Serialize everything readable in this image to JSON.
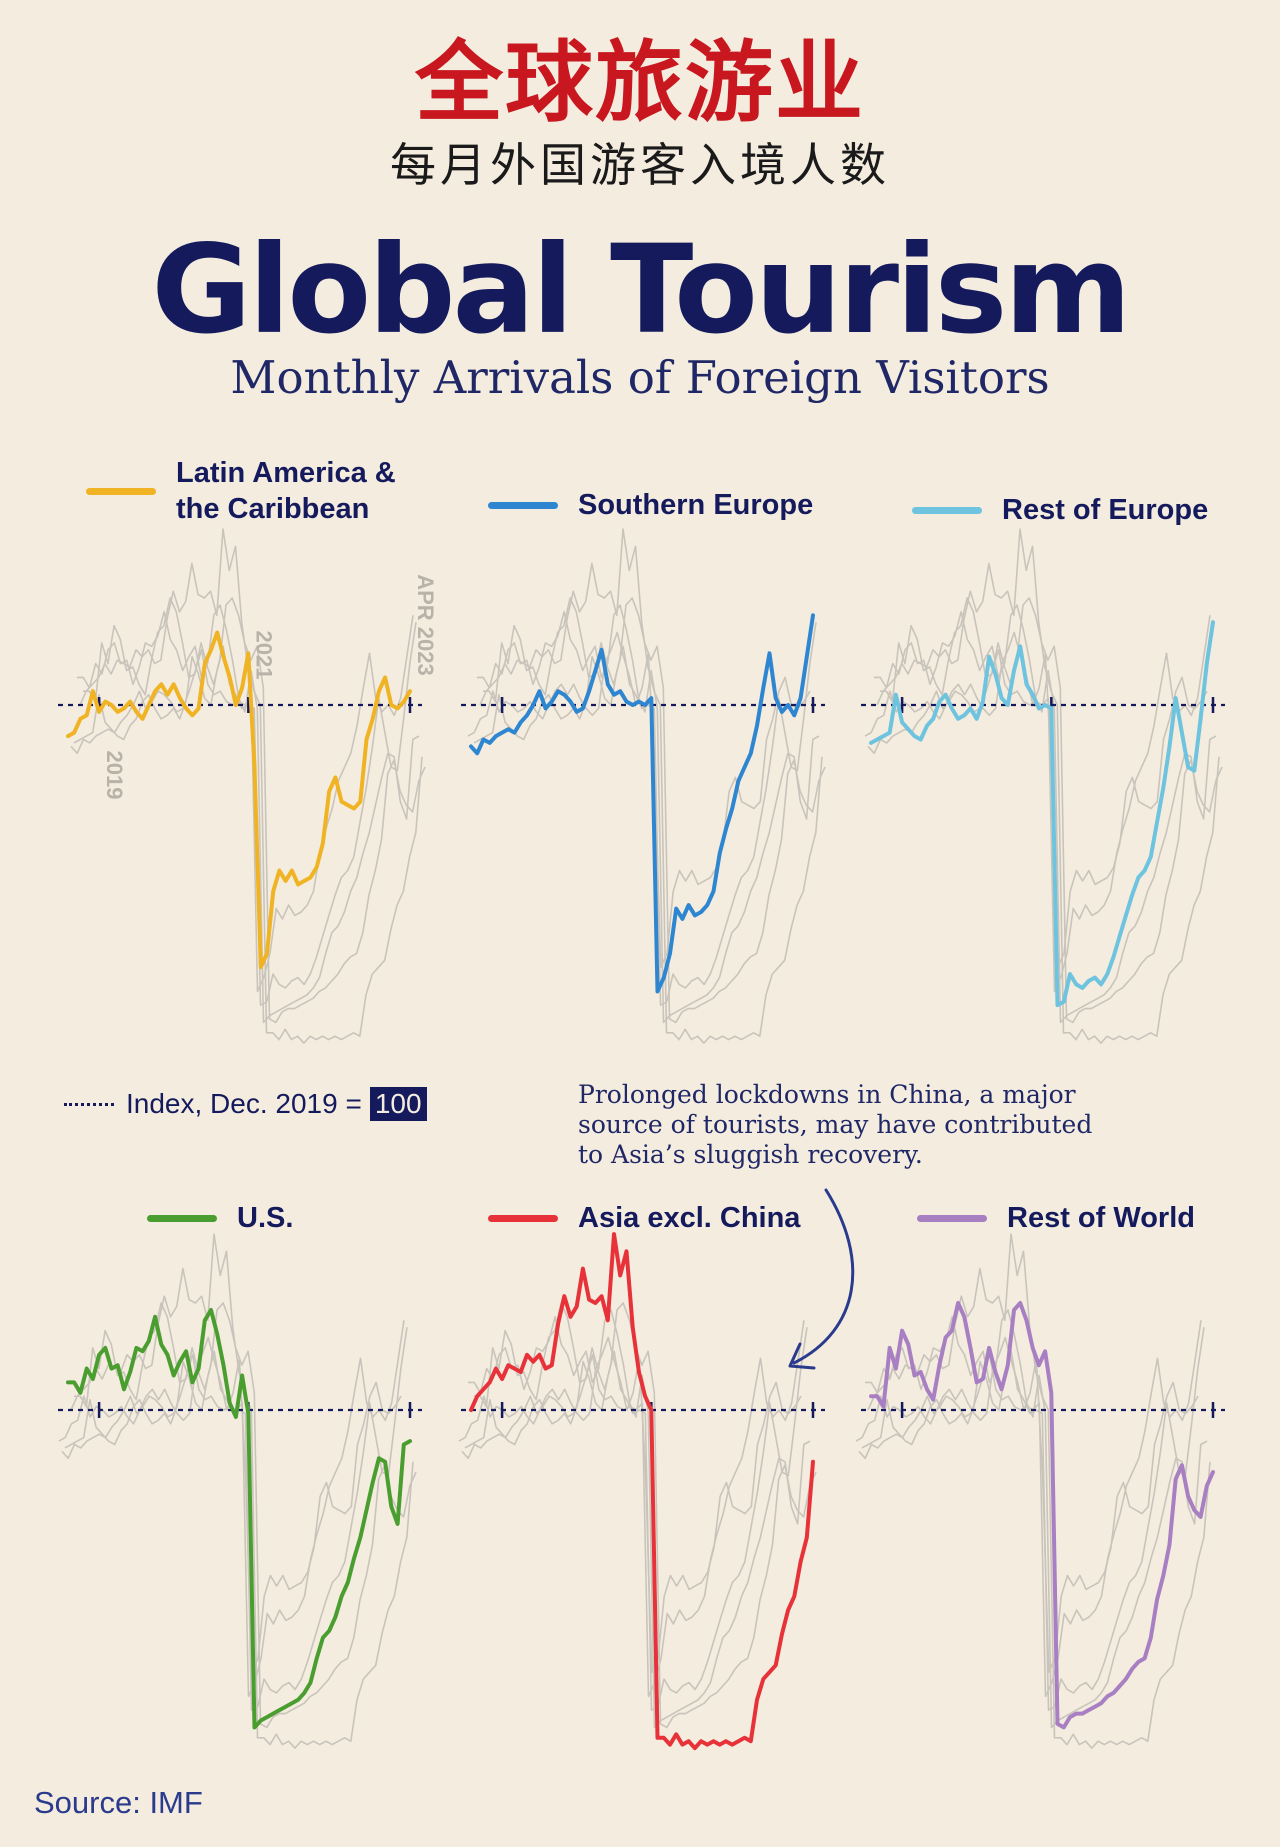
{
  "header": {
    "title_zh": "全球旅游业",
    "subtitle_zh": "每月外国游客入境人数",
    "title_en": "Global Tourism",
    "subtitle_en": "Monthly Arrivals of Foreign Visitors"
  },
  "index_note": {
    "label": "Index, Dec. 2019 =",
    "value": "100"
  },
  "annotation": "Prolonged lockdowns in China, a major source of tourists, may have contributed to Asia’s sluggish recovery.",
  "source": "Source: IMF",
  "colors": {
    "latam": "#f0b323",
    "seurope": "#2e86d1",
    "reurope": "#6ec3df",
    "us": "#4a9e2f",
    "asia": "#e8323a",
    "row": "#a77fc2",
    "ink": "#141a5c",
    "ghost": "#c9c4bb"
  },
  "chart_data": {
    "type": "line",
    "index_base": 100,
    "x_start": "2018-08",
    "x_end": "2023-04",
    "tick_labels": [
      "2019",
      "2021",
      "APR 2023"
    ],
    "panels": [
      {
        "id": "latam",
        "label": "Latin America &\nthe Caribbean",
        "color_key": "latam",
        "values": [
          91,
          92,
          96,
          97,
          104,
          98,
          101,
          100,
          98,
          99,
          101,
          98,
          96,
          100,
          104,
          106,
          103,
          106,
          102,
          99,
          97,
          99,
          112,
          116,
          121,
          114,
          108,
          100,
          105,
          115,
          82,
          24,
          28,
          46,
          52,
          49,
          52,
          48,
          49,
          50,
          53,
          60,
          75,
          79,
          72,
          71,
          70,
          72,
          90,
          96,
          104,
          108,
          100,
          99,
          101,
          104
        ]
      },
      {
        "id": "seurope",
        "label": "Southern Europe",
        "color_key": "seurope",
        "values": [
          88,
          86,
          90,
          89,
          91,
          92,
          93,
          92,
          95,
          97,
          100,
          104,
          99,
          101,
          104,
          103,
          101,
          98,
          99,
          104,
          110,
          116,
          106,
          103,
          104,
          101,
          100,
          101,
          100,
          102,
          17,
          21,
          28,
          41,
          38,
          42,
          39,
          40,
          42,
          46,
          57,
          64,
          70,
          78,
          82,
          86,
          94,
          105,
          115,
          102,
          98,
          100,
          97,
          102,
          114,
          126
        ]
      },
      {
        "id": "reurope",
        "label": "Rest of Europe",
        "color_key": "reurope",
        "values": [
          89,
          90,
          91,
          92,
          103,
          95,
          93,
          91,
          90,
          94,
          96,
          101,
          103,
          99,
          96,
          97,
          99,
          96,
          101,
          114,
          109,
          102,
          100,
          110,
          117,
          106,
          103,
          99,
          100,
          99,
          13,
          14,
          22,
          19,
          18,
          20,
          21,
          19,
          22,
          27,
          33,
          39,
          45,
          50,
          52,
          56,
          66,
          76,
          88,
          102,
          92,
          82,
          81,
          96,
          112,
          124
        ]
      },
      {
        "id": "us",
        "label": "U.S.",
        "color_key": "us",
        "values": [
          108,
          108,
          105,
          112,
          109,
          116,
          118,
          112,
          113,
          106,
          111,
          118,
          117,
          120,
          127,
          119,
          116,
          110,
          114,
          117,
          108,
          112,
          126,
          129,
          122,
          113,
          102,
          98,
          110,
          99,
          8,
          10,
          11,
          12,
          13,
          14,
          15,
          16,
          18,
          21,
          28,
          34,
          36,
          40,
          46,
          50,
          57,
          63,
          71,
          79,
          86,
          85,
          72,
          67,
          90,
          91
        ]
      },
      {
        "id": "asia",
        "label": "Asia excl. China",
        "color_key": "asia",
        "values": [
          100,
          104,
          106,
          108,
          112,
          109,
          113,
          112,
          111,
          116,
          114,
          116,
          112,
          113,
          125,
          133,
          127,
          130,
          141,
          132,
          131,
          133,
          126,
          151,
          139,
          146,
          124,
          111,
          104,
          100,
          5,
          5,
          3,
          6,
          3,
          4,
          2,
          4,
          3,
          4,
          3,
          4,
          3,
          4,
          5,
          4,
          16,
          22,
          24,
          26,
          35,
          42,
          46,
          56,
          63,
          85
        ]
      },
      {
        "id": "row",
        "label": "Rest of World",
        "color_key": "row",
        "values": [
          104,
          104,
          101,
          118,
          112,
          123,
          119,
          110,
          111,
          106,
          103,
          113,
          121,
          123,
          131,
          127,
          118,
          108,
          109,
          118,
          111,
          106,
          113,
          129,
          131,
          126,
          118,
          113,
          117,
          105,
          9,
          8,
          11,
          12,
          12,
          13,
          14,
          15,
          17,
          18,
          20,
          22,
          25,
          27,
          28,
          34,
          45,
          52,
          61,
          80,
          84,
          75,
          71,
          69,
          78,
          82
        ]
      }
    ]
  }
}
